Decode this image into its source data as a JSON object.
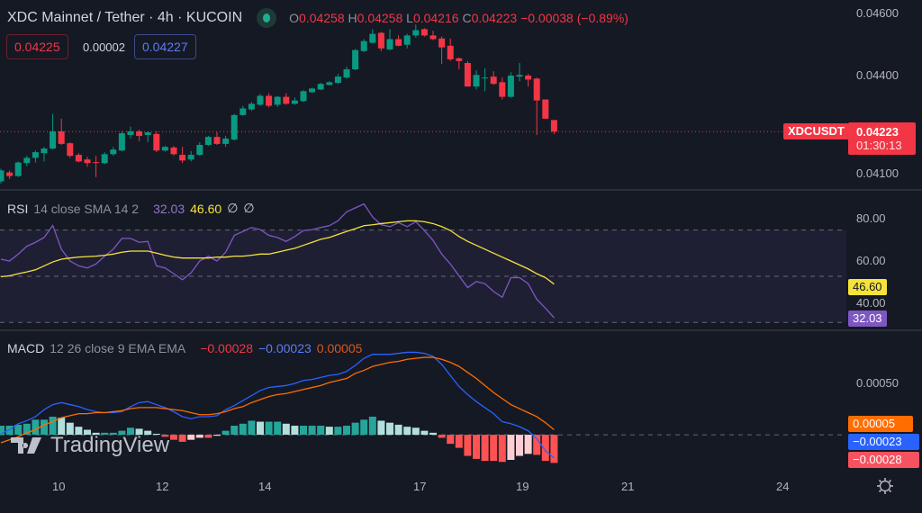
{
  "header": {
    "symbol_title": "XDC Mainnet / Tether · 4h · KUCOIN",
    "ohlc": {
      "o_label": "O",
      "o": "0.04258",
      "h_label": "H",
      "h": "0.04258",
      "l_label": "L",
      "l": "0.04216",
      "c_label": "C",
      "c": "0.04223",
      "change": "−0.00038 (−0.89%)"
    },
    "bid": "0.04225",
    "spread": "0.00002",
    "ask": "0.04227"
  },
  "price_axis": {
    "ticks": [
      "0.04600",
      "0.04400",
      "0.04100"
    ],
    "symbol_tag": "XDCUSDT",
    "last_price": "0.04223",
    "countdown": "01:30:13"
  },
  "rsi_legend": {
    "name": "RSI",
    "params": "14 close SMA 14 2",
    "rsi": "32.03",
    "sma": "46.60",
    "v3": "∅",
    "v4": "∅"
  },
  "rsi_axis": {
    "ticks": [
      "80.00",
      "60.00",
      "40.00"
    ],
    "rsi_tag": "32.03",
    "sma_tag": "46.60"
  },
  "macd_legend": {
    "name": "MACD",
    "params": "12 26 close 9 EMA EMA",
    "hist": "−0.00028",
    "macd": "−0.00023",
    "signal": "0.00005"
  },
  "macd_axis": {
    "ticks": [
      "0.00050"
    ],
    "signal_tag": "0.00005",
    "macd_tag": "−0.00023",
    "hist_tag": "−0.00028"
  },
  "time_axis": {
    "ticks": [
      "10",
      "12",
      "14",
      "17",
      "19",
      "21",
      "24"
    ]
  },
  "watermark": "TradingView",
  "icons": {
    "status": "market-open-dot",
    "settings": "gear-icon"
  },
  "colors": {
    "up": "#089981",
    "down": "#f23645",
    "rsi": "#7e57c2",
    "rsi_sma": "#f5e33b",
    "macd": "#2962ff",
    "signal": "#ff6d00",
    "hist_up_strong": "#26a69a",
    "hist_up_weak": "#b2dfdb",
    "hist_down_strong": "#ff5252",
    "hist_down_weak": "#ffcdd2"
  },
  "chart_data": [
    {
      "type": "candlestick",
      "title": "XDC Mainnet / Tether · 4h · KUCOIN",
      "ylim": [
        0.0405,
        0.0462
      ],
      "yticks": [
        0.046,
        0.044,
        0.041
      ],
      "xticks": [
        "10",
        "12",
        "14",
        "17",
        "19",
        "21",
        "24"
      ],
      "last_price": 0.04223,
      "candles": [
        [
          0.04073,
          0.04111,
          0.04067,
          0.04106
        ],
        [
          0.041,
          0.04106,
          0.0408,
          0.04089
        ],
        [
          0.04089,
          0.04133,
          0.04086,
          0.0413
        ],
        [
          0.04128,
          0.0415,
          0.04119,
          0.04144
        ],
        [
          0.04144,
          0.04166,
          0.0413,
          0.04161
        ],
        [
          0.04158,
          0.04177,
          0.04133,
          0.04172
        ],
        [
          0.04172,
          0.04276,
          0.04169,
          0.04224
        ],
        [
          0.04224,
          0.04262,
          0.04183,
          0.04186
        ],
        [
          0.04188,
          0.04191,
          0.04144,
          0.0415
        ],
        [
          0.04153,
          0.04158,
          0.0413,
          0.04133
        ],
        [
          0.04139,
          0.04147,
          0.04117,
          0.04128
        ],
        [
          0.04131,
          0.0415,
          0.04086,
          0.0413
        ],
        [
          0.04128,
          0.04161,
          0.04125,
          0.04155
        ],
        [
          0.04155,
          0.04177,
          0.0415,
          0.04169
        ],
        [
          0.04166,
          0.04224,
          0.04163,
          0.04218
        ],
        [
          0.04213,
          0.04238,
          0.04202,
          0.04224
        ],
        [
          0.04224,
          0.04229,
          0.04194,
          0.0421
        ],
        [
          0.04213,
          0.04224,
          0.04191,
          0.04221
        ],
        [
          0.04216,
          0.04224,
          0.04161,
          0.04166
        ],
        [
          0.04166,
          0.0418,
          0.04163,
          0.04177
        ],
        [
          0.04175,
          0.0418,
          0.0415,
          0.04155
        ],
        [
          0.04153,
          0.04177,
          0.04128,
          0.04136
        ],
        [
          0.04139,
          0.04164,
          0.04133,
          0.04153
        ],
        [
          0.04153,
          0.04191,
          0.0415,
          0.04183
        ],
        [
          0.04183,
          0.0421,
          0.0418,
          0.04207
        ],
        [
          0.04207,
          0.04221,
          0.04183,
          0.04186
        ],
        [
          0.04186,
          0.0421,
          0.04177,
          0.04202
        ],
        [
          0.04199,
          0.04276,
          0.04196,
          0.04273
        ],
        [
          0.04273,
          0.04301,
          0.04271,
          0.04293
        ],
        [
          0.0429,
          0.04312,
          0.04285,
          0.04307
        ],
        [
          0.04304,
          0.04337,
          0.04301,
          0.04331
        ],
        [
          0.04331,
          0.04339,
          0.04296,
          0.04301
        ],
        [
          0.04304,
          0.04331,
          0.04298,
          0.04328
        ],
        [
          0.04328,
          0.04339,
          0.04304,
          0.04307
        ],
        [
          0.04307,
          0.04326,
          0.04304,
          0.04317
        ],
        [
          0.04315,
          0.04348,
          0.04312,
          0.04345
        ],
        [
          0.04342,
          0.04356,
          0.04339,
          0.04353
        ],
        [
          0.0435,
          0.0437,
          0.04348,
          0.04367
        ],
        [
          0.04364,
          0.04375,
          0.04362,
          0.04372
        ],
        [
          0.0437,
          0.04397,
          0.04367,
          0.04389
        ],
        [
          0.04386,
          0.04419,
          0.04383,
          0.04411
        ],
        [
          0.04411,
          0.04472,
          0.04408,
          0.04469
        ],
        [
          0.04466,
          0.04502,
          0.04463,
          0.04496
        ],
        [
          0.04491,
          0.04532,
          0.04488,
          0.04518
        ],
        [
          0.04521,
          0.04524,
          0.04466,
          0.04474
        ],
        [
          0.04471,
          0.04532,
          0.04469,
          0.04502
        ],
        [
          0.04502,
          0.04513,
          0.0448,
          0.04482
        ],
        [
          0.04485,
          0.04518,
          0.04474,
          0.04513
        ],
        [
          0.04513,
          0.04546,
          0.04507,
          0.04529
        ],
        [
          0.04532,
          0.04535,
          0.0451,
          0.04513
        ],
        [
          0.04513,
          0.04527,
          0.04499,
          0.04502
        ],
        [
          0.04504,
          0.0451,
          0.04427,
          0.04477
        ],
        [
          0.04482,
          0.04504,
          0.04436,
          0.04441
        ],
        [
          0.04444,
          0.04447,
          0.04411,
          0.04436
        ],
        [
          0.0443,
          0.04436,
          0.04359,
          0.04359
        ],
        [
          0.04359,
          0.04408,
          0.0435,
          0.04394
        ],
        [
          0.04386,
          0.04414,
          0.04345,
          0.04386
        ],
        [
          0.04389,
          0.04405,
          0.04364,
          0.04367
        ],
        [
          0.04372,
          0.04386,
          0.0432,
          0.04328
        ],
        [
          0.04328,
          0.04402,
          0.04326,
          0.04392
        ],
        [
          0.04389,
          0.0443,
          0.04375,
          0.04394
        ],
        [
          0.04392,
          0.04397,
          0.04359,
          0.0438
        ],
        [
          0.04383,
          0.04386,
          0.04213,
          0.04317
        ],
        [
          0.0432,
          0.0432,
          0.04262,
          0.04262
        ],
        [
          0.04258,
          0.04258,
          0.04216,
          0.04223
        ]
      ]
    },
    {
      "type": "line",
      "name": "RSI 14 close SMA 14 2",
      "ylim": [
        27,
        87
      ],
      "yticks": [
        80,
        60,
        40
      ],
      "bands": [
        70,
        50,
        30
      ],
      "series": [
        {
          "name": "RSI",
          "values": [
            57.4,
            56.6,
            59.6,
            63.0,
            64.7,
            66.8,
            72.0,
            61.7,
            56.6,
            54.5,
            53.6,
            55.3,
            58.7,
            61.7,
            66.4,
            66.4,
            64.7,
            65.1,
            54.5,
            53.6,
            51.1,
            48.5,
            51.5,
            56.6,
            58.7,
            56.6,
            60.4,
            67.7,
            69.4,
            71.1,
            70.2,
            67.7,
            66.8,
            65.1,
            67.2,
            69.8,
            70.2,
            71.1,
            71.9,
            74.0,
            77.9,
            79.6,
            81.3,
            75.7,
            72.3,
            71.5,
            73.2,
            71.5,
            73.6,
            69.8,
            65.5,
            59.6,
            55.3,
            50.2,
            45.1,
            47.7,
            46.8,
            43.4,
            40.9,
            49.4,
            49.4,
            46.8,
            40.0,
            36.2,
            32.03
          ]
        },
        {
          "name": "SMA",
          "values": [
            49.8,
            50.2,
            51.1,
            51.9,
            52.8,
            54.5,
            56.2,
            57.4,
            57.9,
            58.3,
            58.5,
            58.7,
            59.1,
            59.6,
            60.4,
            60.9,
            60.9,
            60.9,
            60.0,
            59.1,
            58.3,
            57.9,
            57.9,
            57.9,
            57.9,
            58.3,
            58.3,
            58.7,
            58.7,
            59.1,
            59.6,
            59.6,
            60.4,
            61.3,
            62.1,
            63.4,
            64.7,
            66.0,
            66.8,
            68.1,
            69.4,
            70.6,
            71.9,
            72.3,
            72.8,
            73.2,
            73.6,
            74.0,
            74.0,
            73.6,
            72.8,
            71.5,
            69.8,
            67.2,
            65.1,
            63.4,
            61.7,
            60.0,
            58.3,
            56.6,
            54.9,
            53.2,
            51.1,
            49.4,
            46.6
          ]
        }
      ]
    },
    {
      "type": "bar+line",
      "name": "MACD 12 26 close 9 EMA EMA",
      "ylim": [
        -0.00042,
        0.00103
      ],
      "yticks": [
        0.0005
      ],
      "histogram": [
        9e-05,
        9e-05,
        0.0001,
        0.00011,
        0.00015,
        0.00015,
        0.00018,
        0.00017,
        0.00012,
        8e-05,
        5e-05,
        2e-05,
        2e-05,
        2e-05,
        4e-05,
        7e-05,
        6e-05,
        4e-05,
        1e-05,
        -2e-05,
        -5e-05,
        -7e-05,
        -5e-05,
        -3e-05,
        -3e-05,
        -1e-05,
        4e-05,
        9e-05,
        0.00011,
        0.00014,
        0.00013,
        0.00013,
        0.00013,
        0.00011,
        9e-05,
        9e-05,
        9e-05,
        9e-05,
        8e-05,
        8e-05,
        9e-05,
        0.00012,
        0.00015,
        0.00018,
        0.00014,
        0.00012,
        0.0001,
        8e-05,
        7e-05,
        4e-05,
        2e-05,
        -3e-05,
        -9e-05,
        -0.00013,
        -0.00021,
        -0.00024,
        -0.00026,
        -0.00026,
        -0.00027,
        -0.00025,
        -0.00021,
        -0.00019,
        -0.0002,
        -0.00026,
        -0.00028
      ],
      "series": [
        {
          "name": "MACD",
          "values": [
            1e-05,
            5e-05,
            0.00011,
            0.00014,
            0.00018,
            0.00025,
            0.0003,
            0.00032,
            0.0003,
            0.00028,
            0.00025,
            0.00023,
            0.00022,
            0.00022,
            0.00023,
            0.00028,
            0.00032,
            0.00033,
            0.0003,
            0.00027,
            0.00023,
            0.00018,
            0.00016,
            0.00018,
            0.00018,
            0.00019,
            0.00025,
            0.00029,
            0.00034,
            0.00039,
            0.00044,
            0.00047,
            0.00048,
            0.00049,
            0.00051,
            0.00054,
            0.00055,
            0.00057,
            0.00059,
            0.0006,
            0.00063,
            0.00069,
            0.00076,
            0.0008,
            0.0008,
            0.0008,
            0.00081,
            0.00082,
            0.00082,
            0.00081,
            0.00078,
            0.0007,
            0.00059,
            0.00048,
            0.0004,
            0.00033,
            0.00027,
            0.00021,
            0.00013,
            0.00011,
            8e-05,
            4e-05,
            -4e-05,
            -0.00016,
            -0.00023
          ]
        },
        {
          "name": "Signal",
          "values": [
            -8e-05,
            -5e-05,
            -2e-05,
            2e-05,
            5e-05,
            0.0001,
            0.00013,
            0.00017,
            0.00019,
            0.00021,
            0.00021,
            0.00022,
            0.00022,
            0.00023,
            0.00024,
            0.00026,
            0.00027,
            0.00027,
            0.00027,
            0.00026,
            0.00025,
            0.00024,
            0.00022,
            0.0002,
            0.0002,
            0.00021,
            0.00023,
            0.00026,
            0.00028,
            0.00032,
            0.00035,
            0.00038,
            0.0004,
            0.00041,
            0.00043,
            0.00045,
            0.00047,
            0.00049,
            0.00052,
            0.00054,
            0.00056,
            0.00061,
            0.00064,
            0.00068,
            0.0007,
            0.00072,
            0.00073,
            0.00075,
            0.00076,
            0.00077,
            0.00077,
            0.00075,
            0.00072,
            0.00068,
            0.00062,
            0.00056,
            0.00049,
            0.00042,
            0.00036,
            0.0003,
            0.00026,
            0.00022,
            0.00018,
            0.00012,
            5e-05
          ]
        }
      ]
    }
  ]
}
